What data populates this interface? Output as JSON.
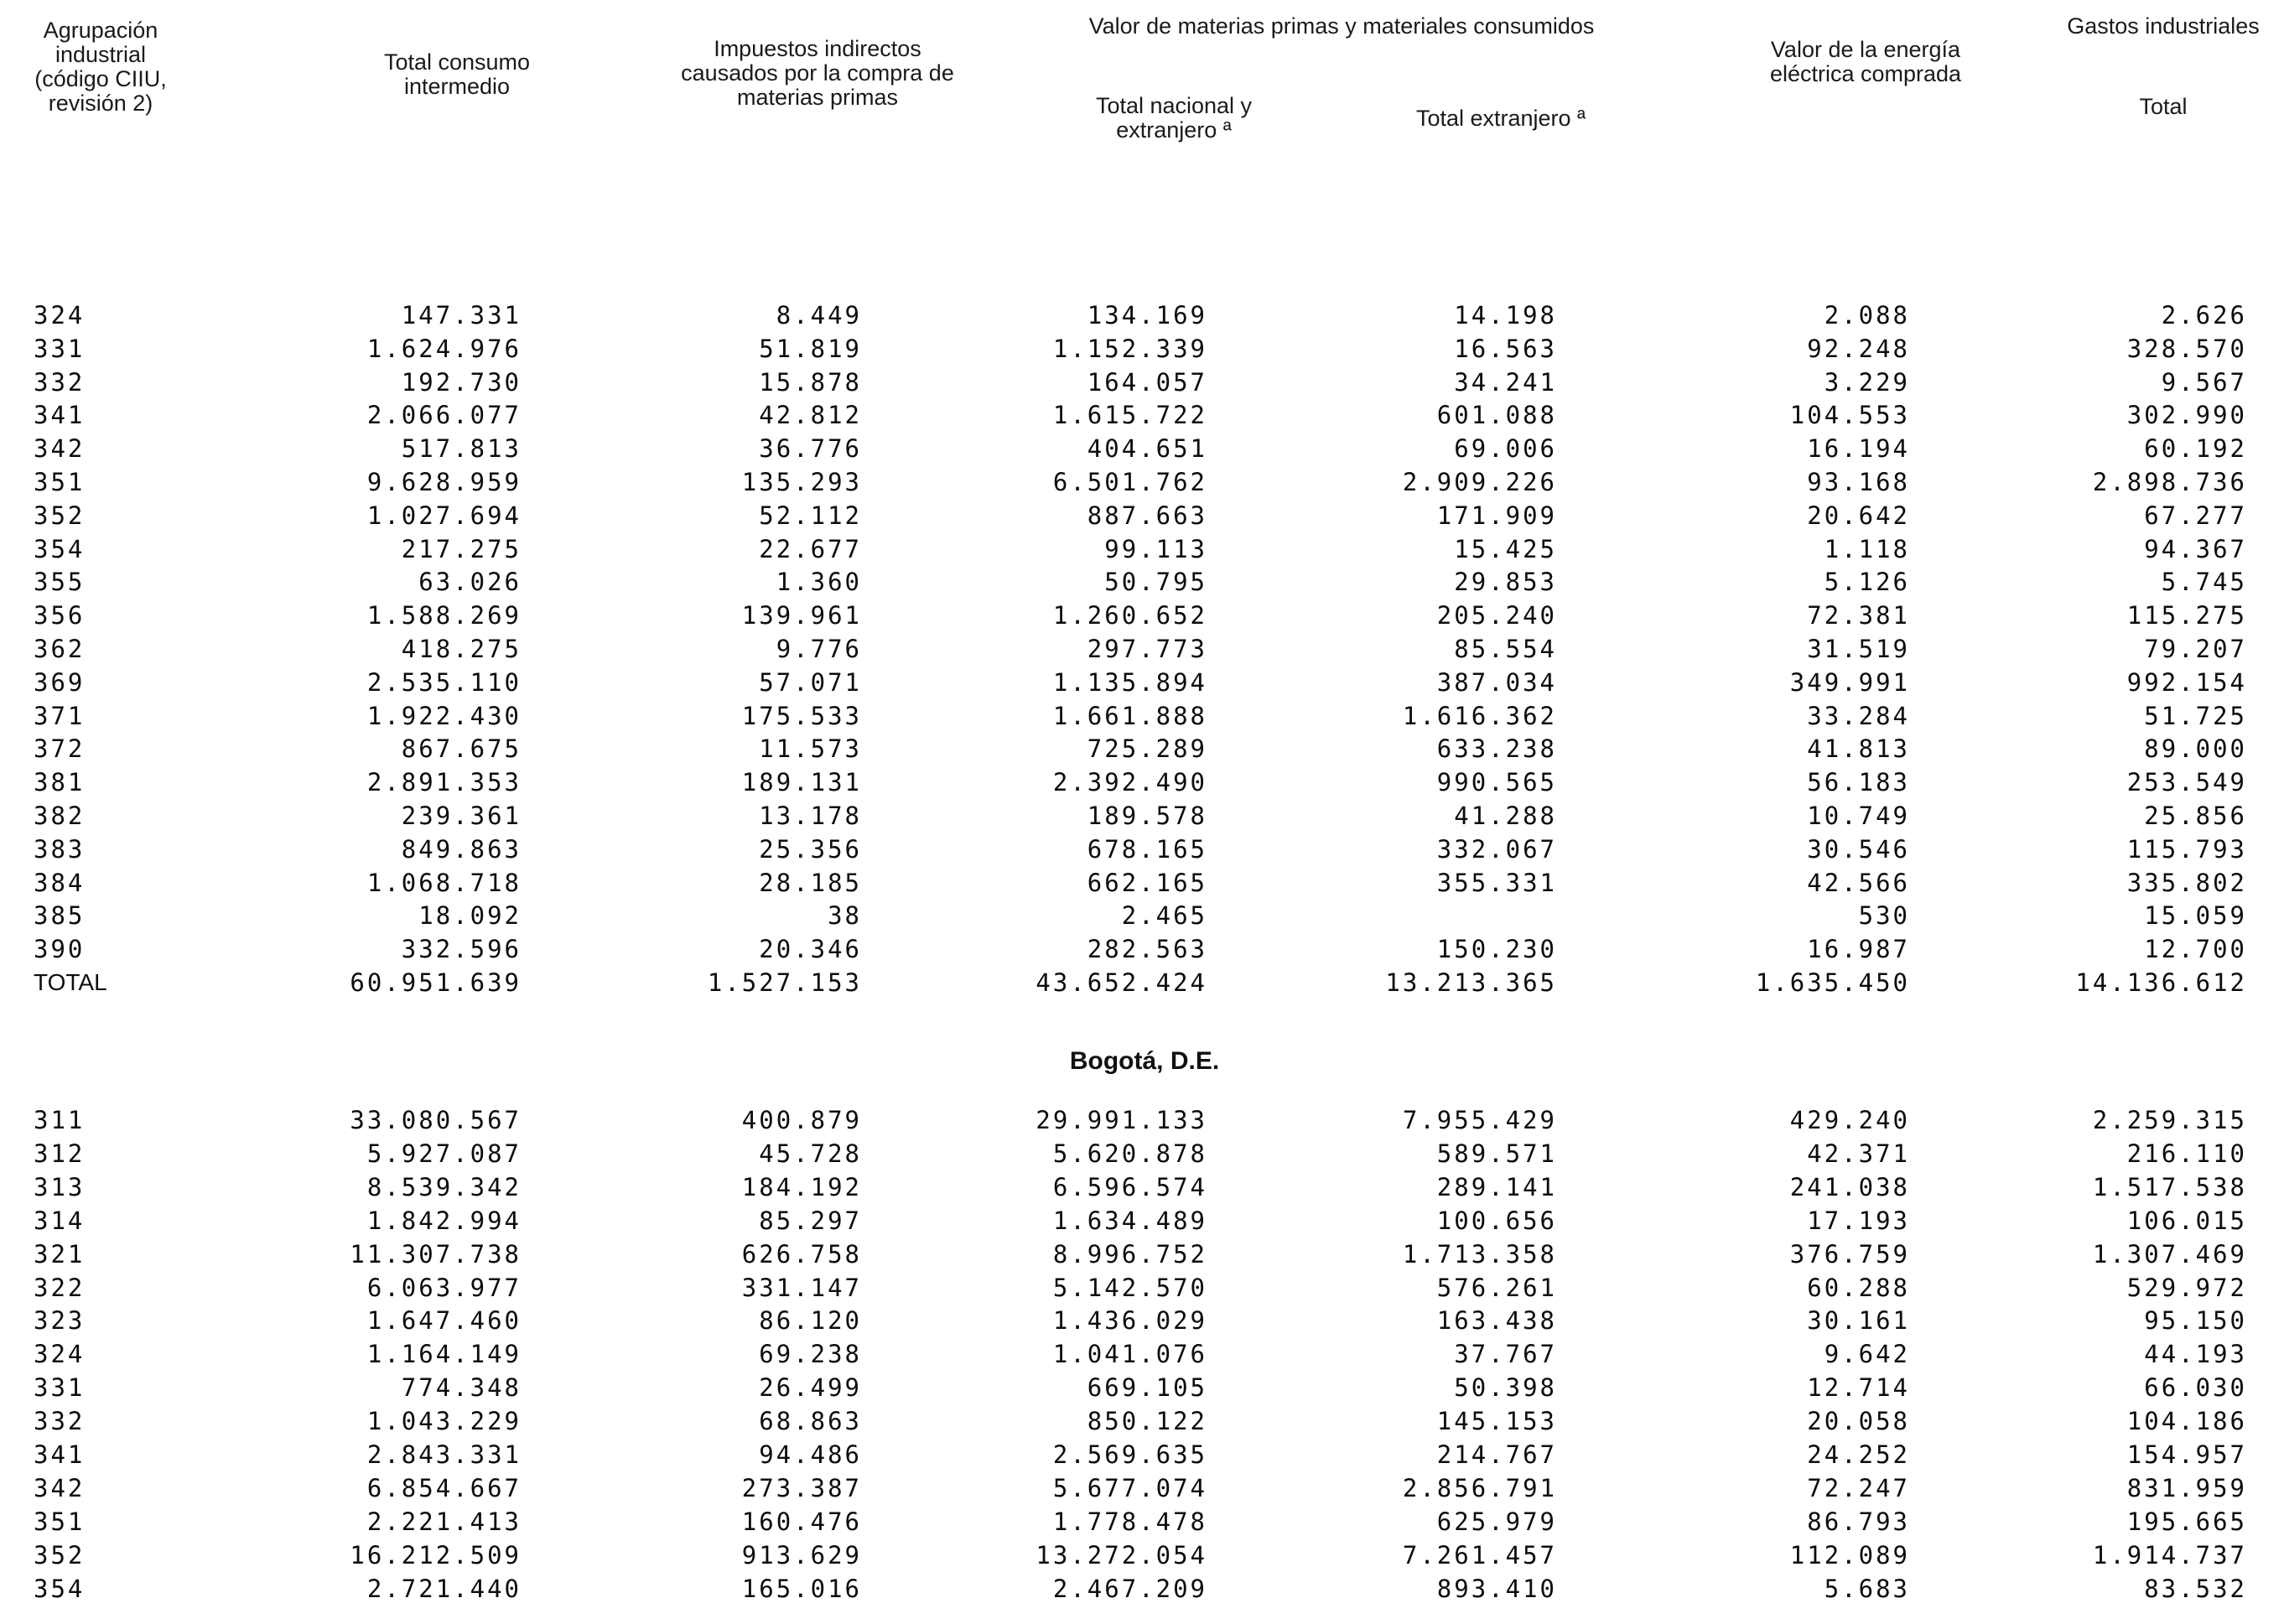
{
  "headers": {
    "agrupacion": [
      "Agrupación",
      "industrial",
      "(código CIIU,",
      "revisión 2)"
    ],
    "total_consumo": [
      "Total consumo",
      "intermedio"
    ],
    "impuestos": [
      "Impuestos indirectos",
      "causados por la compra de",
      "materias primas"
    ],
    "valor_materias": "Valor de materias primas y materiales consumidos",
    "total_nacional": [
      "Total nacional y",
      "extranjero ª"
    ],
    "total_extranjero": "Total extranjero ª",
    "energia": [
      "Valor de la energía",
      "eléctrica comprada"
    ],
    "gastos": "Gastos industriales",
    "gastos_total": "Total"
  },
  "section1_rows": [
    {
      "code": "324",
      "total_consumo": "147.331",
      "impuestos": "8.449",
      "total_nacional_extranjero": "134.169",
      "total_extranjero": "14.198",
      "energia": "2.088",
      "gastos_total": "2.626"
    },
    {
      "code": "331",
      "total_consumo": "1.624.976",
      "impuestos": "51.819",
      "total_nacional_extranjero": "1.152.339",
      "total_extranjero": "16.563",
      "energia": "92.248",
      "gastos_total": "328.570"
    },
    {
      "code": "332",
      "total_consumo": "192.730",
      "impuestos": "15.878",
      "total_nacional_extranjero": "164.057",
      "total_extranjero": "34.241",
      "energia": "3.229",
      "gastos_total": "9.567"
    },
    {
      "code": "341",
      "total_consumo": "2.066.077",
      "impuestos": "42.812",
      "total_nacional_extranjero": "1.615.722",
      "total_extranjero": "601.088",
      "energia": "104.553",
      "gastos_total": "302.990"
    },
    {
      "code": "342",
      "total_consumo": "517.813",
      "impuestos": "36.776",
      "total_nacional_extranjero": "404.651",
      "total_extranjero": "69.006",
      "energia": "16.194",
      "gastos_total": "60.192"
    },
    {
      "code": "351",
      "total_consumo": "9.628.959",
      "impuestos": "135.293",
      "total_nacional_extranjero": "6.501.762",
      "total_extranjero": "2.909.226",
      "energia": "93.168",
      "gastos_total": "2.898.736"
    },
    {
      "code": "352",
      "total_consumo": "1.027.694",
      "impuestos": "52.112",
      "total_nacional_extranjero": "887.663",
      "total_extranjero": "171.909",
      "energia": "20.642",
      "gastos_total": "67.277"
    },
    {
      "code": "354",
      "total_consumo": "217.275",
      "impuestos": "22.677",
      "total_nacional_extranjero": "99.113",
      "total_extranjero": "15.425",
      "energia": "1.118",
      "gastos_total": "94.367"
    },
    {
      "code": "355",
      "total_consumo": "63.026",
      "impuestos": "1.360",
      "total_nacional_extranjero": "50.795",
      "total_extranjero": "29.853",
      "energia": "5.126",
      "gastos_total": "5.745"
    },
    {
      "code": "356",
      "total_consumo": "1.588.269",
      "impuestos": "139.961",
      "total_nacional_extranjero": "1.260.652",
      "total_extranjero": "205.240",
      "energia": "72.381",
      "gastos_total": "115.275"
    },
    {
      "code": "362",
      "total_consumo": "418.275",
      "impuestos": "9.776",
      "total_nacional_extranjero": "297.773",
      "total_extranjero": "85.554",
      "energia": "31.519",
      "gastos_total": "79.207"
    },
    {
      "code": "369",
      "total_consumo": "2.535.110",
      "impuestos": "57.071",
      "total_nacional_extranjero": "1.135.894",
      "total_extranjero": "387.034",
      "energia": "349.991",
      "gastos_total": "992.154"
    },
    {
      "code": "371",
      "total_consumo": "1.922.430",
      "impuestos": "175.533",
      "total_nacional_extranjero": "1.661.888",
      "total_extranjero": "1.616.362",
      "energia": "33.284",
      "gastos_total": "51.725"
    },
    {
      "code": "372",
      "total_consumo": "867.675",
      "impuestos": "11.573",
      "total_nacional_extranjero": "725.289",
      "total_extranjero": "633.238",
      "energia": "41.813",
      "gastos_total": "89.000"
    },
    {
      "code": "381",
      "total_consumo": "2.891.353",
      "impuestos": "189.131",
      "total_nacional_extranjero": "2.392.490",
      "total_extranjero": "990.565",
      "energia": "56.183",
      "gastos_total": "253.549"
    },
    {
      "code": "382",
      "total_consumo": "239.361",
      "impuestos": "13.178",
      "total_nacional_extranjero": "189.578",
      "total_extranjero": "41.288",
      "energia": "10.749",
      "gastos_total": "25.856"
    },
    {
      "code": "383",
      "total_consumo": "849.863",
      "impuestos": "25.356",
      "total_nacional_extranjero": "678.165",
      "total_extranjero": "332.067",
      "energia": "30.546",
      "gastos_total": "115.793"
    },
    {
      "code": "384",
      "total_consumo": "1.068.718",
      "impuestos": "28.185",
      "total_nacional_extranjero": "662.165",
      "total_extranjero": "355.331",
      "energia": "42.566",
      "gastos_total": "335.802"
    },
    {
      "code": "385",
      "total_consumo": "18.092",
      "impuestos": "38",
      "total_nacional_extranjero": "2.465",
      "total_extranjero": "",
      "energia": "530",
      "gastos_total": "15.059"
    },
    {
      "code": "390",
      "total_consumo": "332.596",
      "impuestos": "20.346",
      "total_nacional_extranjero": "282.563",
      "total_extranjero": "150.230",
      "energia": "16.987",
      "gastos_total": "12.700"
    }
  ],
  "section1_total": {
    "label": "TOTAL",
    "total_consumo": "60.951.639",
    "impuestos": "1.527.153",
    "total_nacional_extranjero": "43.652.424",
    "total_extranjero": "13.213.365",
    "energia": "1.635.450",
    "gastos_total": "14.136.612"
  },
  "section2_title": "Bogotá, D.E.",
  "section2_rows": [
    {
      "code": "311",
      "total_consumo": "33.080.567",
      "impuestos": "400.879",
      "total_nacional_extranjero": "29.991.133",
      "total_extranjero": "7.955.429",
      "energia": "429.240",
      "gastos_total": "2.259.315"
    },
    {
      "code": "312",
      "total_consumo": "5.927.087",
      "impuestos": "45.728",
      "total_nacional_extranjero": "5.620.878",
      "total_extranjero": "589.571",
      "energia": "42.371",
      "gastos_total": "216.110"
    },
    {
      "code": "313",
      "total_consumo": "8.539.342",
      "impuestos": "184.192",
      "total_nacional_extranjero": "6.596.574",
      "total_extranjero": "289.141",
      "energia": "241.038",
      "gastos_total": "1.517.538"
    },
    {
      "code": "314",
      "total_consumo": "1.842.994",
      "impuestos": "85.297",
      "total_nacional_extranjero": "1.634.489",
      "total_extranjero": "100.656",
      "energia": "17.193",
      "gastos_total": "106.015"
    },
    {
      "code": "321",
      "total_consumo": "11.307.738",
      "impuestos": "626.758",
      "total_nacional_extranjero": "8.996.752",
      "total_extranjero": "1.713.358",
      "energia": "376.759",
      "gastos_total": "1.307.469"
    },
    {
      "code": "322",
      "total_consumo": "6.063.977",
      "impuestos": "331.147",
      "total_nacional_extranjero": "5.142.570",
      "total_extranjero": "576.261",
      "energia": "60.288",
      "gastos_total": "529.972"
    },
    {
      "code": "323",
      "total_consumo": "1.647.460",
      "impuestos": "86.120",
      "total_nacional_extranjero": "1.436.029",
      "total_extranjero": "163.438",
      "energia": "30.161",
      "gastos_total": "95.150"
    },
    {
      "code": "324",
      "total_consumo": "1.164.149",
      "impuestos": "69.238",
      "total_nacional_extranjero": "1.041.076",
      "total_extranjero": "37.767",
      "energia": "9.642",
      "gastos_total": "44.193"
    },
    {
      "code": "331",
      "total_consumo": "774.348",
      "impuestos": "26.499",
      "total_nacional_extranjero": "669.105",
      "total_extranjero": "50.398",
      "energia": "12.714",
      "gastos_total": "66.030"
    },
    {
      "code": "332",
      "total_consumo": "1.043.229",
      "impuestos": "68.863",
      "total_nacional_extranjero": "850.122",
      "total_extranjero": "145.153",
      "energia": "20.058",
      "gastos_total": "104.186"
    },
    {
      "code": "341",
      "total_consumo": "2.843.331",
      "impuestos": "94.486",
      "total_nacional_extranjero": "2.569.635",
      "total_extranjero": "214.767",
      "energia": "24.252",
      "gastos_total": "154.957"
    },
    {
      "code": "342",
      "total_consumo": "6.854.667",
      "impuestos": "273.387",
      "total_nacional_extranjero": "5.677.074",
      "total_extranjero": "2.856.791",
      "energia": "72.247",
      "gastos_total": "831.959"
    },
    {
      "code": "351",
      "total_consumo": "2.221.413",
      "impuestos": "160.476",
      "total_nacional_extranjero": "1.778.478",
      "total_extranjero": "625.979",
      "energia": "86.793",
      "gastos_total": "195.665"
    },
    {
      "code": "352",
      "total_consumo": "16.212.509",
      "impuestos": "913.629",
      "total_nacional_extranjero": "13.272.054",
      "total_extranjero": "7.261.457",
      "energia": "112.089",
      "gastos_total": "1.914.737"
    },
    {
      "code": "354",
      "total_consumo": "2.721.440",
      "impuestos": "165.016",
      "total_nacional_extranjero": "2.467.209",
      "total_extranjero": "893.410",
      "energia": "5.683",
      "gastos_total": "83.532"
    }
  ]
}
